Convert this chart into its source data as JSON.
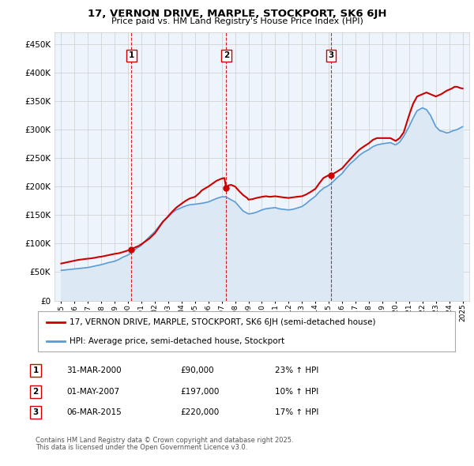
{
  "title": "17, VERNON DRIVE, MARPLE, STOCKPORT, SK6 6JH",
  "subtitle": "Price paid vs. HM Land Registry's House Price Index (HPI)",
  "legend_line1": "17, VERNON DRIVE, MARPLE, STOCKPORT, SK6 6JH (semi-detached house)",
  "legend_line2": "HPI: Average price, semi-detached house, Stockport",
  "footer_line1": "Contains HM Land Registry data © Crown copyright and database right 2025.",
  "footer_line2": "This data is licensed under the Open Government Licence v3.0.",
  "sales": [
    {
      "label": 1,
      "date_str": "31-MAR-2000",
      "date_x": 2000.25,
      "price": 90000,
      "hpi_pct": "23% ↑ HPI"
    },
    {
      "label": 2,
      "date_str": "01-MAY-2007",
      "date_x": 2007.33,
      "price": 197000,
      "hpi_pct": "10% ↑ HPI"
    },
    {
      "label": 3,
      "date_str": "06-MAR-2015",
      "date_x": 2015.17,
      "price": 220000,
      "hpi_pct": "17% ↑ HPI"
    }
  ],
  "price_color": "#cc0000",
  "hpi_color": "#5b9bd5",
  "hpi_fill_color": "#dce9f5",
  "vline_color": "#cc0000",
  "grid_color": "#cccccc",
  "background_color": "#ffffff",
  "chart_bg_color": "#edf4fb",
  "ylim": [
    0,
    470000
  ],
  "xlim": [
    1994.5,
    2025.5
  ],
  "yticks": [
    0,
    50000,
    100000,
    150000,
    200000,
    250000,
    300000,
    350000,
    400000,
    450000
  ],
  "xticks": [
    1995,
    1996,
    1997,
    1998,
    1999,
    2000,
    2001,
    2002,
    2003,
    2004,
    2005,
    2006,
    2007,
    2008,
    2009,
    2010,
    2011,
    2012,
    2013,
    2014,
    2015,
    2016,
    2017,
    2018,
    2019,
    2020,
    2021,
    2022,
    2023,
    2024,
    2025
  ],
  "price_data_x": [
    1995.0,
    1995.1,
    1995.2,
    1995.3,
    1995.4,
    1995.5,
    1995.6,
    1995.7,
    1995.8,
    1995.9,
    1996.0,
    1996.1,
    1996.2,
    1996.3,
    1996.5,
    1996.8,
    1997.0,
    1997.2,
    1997.5,
    1997.8,
    1998.0,
    1998.3,
    1998.6,
    1999.0,
    1999.3,
    1999.6,
    2000.0,
    2000.25,
    2000.5,
    2000.8,
    2001.0,
    2001.3,
    2001.6,
    2002.0,
    2002.3,
    2002.6,
    2003.0,
    2003.3,
    2003.6,
    2004.0,
    2004.3,
    2004.6,
    2005.0,
    2005.3,
    2005.5,
    2005.7,
    2006.0,
    2006.3,
    2006.6,
    2006.9,
    2007.0,
    2007.2,
    2007.33,
    2007.5,
    2007.7,
    2008.0,
    2008.3,
    2008.6,
    2008.9,
    2009.0,
    2009.3,
    2009.6,
    2010.0,
    2010.3,
    2010.6,
    2011.0,
    2011.3,
    2011.6,
    2012.0,
    2012.3,
    2012.6,
    2013.0,
    2013.3,
    2013.6,
    2014.0,
    2014.3,
    2014.6,
    2015.0,
    2015.17,
    2015.3,
    2015.6,
    2016.0,
    2016.3,
    2016.6,
    2017.0,
    2017.3,
    2017.6,
    2018.0,
    2018.3,
    2018.6,
    2019.0,
    2019.3,
    2019.6,
    2020.0,
    2020.3,
    2020.6,
    2021.0,
    2021.3,
    2021.6,
    2022.0,
    2022.3,
    2022.6,
    2023.0,
    2023.2,
    2023.4,
    2023.6,
    2023.8,
    2024.0,
    2024.2,
    2024.4,
    2024.6,
    2024.8,
    2025.0
  ],
  "price_data_y": [
    65000,
    65500,
    66000,
    66500,
    67000,
    67500,
    68000,
    68500,
    69000,
    69500,
    70000,
    70500,
    71000,
    71500,
    72000,
    73000,
    73500,
    74000,
    75000,
    76500,
    77000,
    78500,
    80000,
    82000,
    83000,
    85000,
    88000,
    90000,
    93000,
    96000,
    99000,
    104000,
    109000,
    118000,
    128000,
    138000,
    148000,
    156000,
    163000,
    170000,
    175000,
    179000,
    182000,
    188000,
    193000,
    196000,
    200000,
    205000,
    210000,
    213000,
    214000,
    215000,
    197000,
    202000,
    203000,
    200000,
    192000,
    185000,
    180000,
    177000,
    178000,
    180000,
    182000,
    183000,
    182000,
    183000,
    182000,
    181000,
    180000,
    181000,
    182000,
    183000,
    186000,
    190000,
    196000,
    206000,
    215000,
    220000,
    220000,
    222000,
    226000,
    232000,
    240000,
    248000,
    258000,
    265000,
    270000,
    276000,
    282000,
    285000,
    285000,
    285000,
    285000,
    280000,
    285000,
    295000,
    325000,
    345000,
    358000,
    362000,
    365000,
    362000,
    358000,
    360000,
    362000,
    365000,
    368000,
    370000,
    372000,
    375000,
    375000,
    373000,
    372000
  ],
  "hpi_data_x": [
    1995.0,
    1995.2,
    1995.4,
    1995.6,
    1995.8,
    1996.0,
    1996.2,
    1996.4,
    1996.6,
    1996.8,
    1997.0,
    1997.2,
    1997.5,
    1997.8,
    1998.0,
    1998.3,
    1998.6,
    1999.0,
    1999.3,
    1999.6,
    2000.0,
    2000.3,
    2000.6,
    2001.0,
    2001.3,
    2001.6,
    2002.0,
    2002.3,
    2002.6,
    2003.0,
    2003.3,
    2003.6,
    2004.0,
    2004.3,
    2004.6,
    2005.0,
    2005.3,
    2005.6,
    2006.0,
    2006.3,
    2006.6,
    2007.0,
    2007.3,
    2007.6,
    2008.0,
    2008.3,
    2008.6,
    2009.0,
    2009.3,
    2009.6,
    2010.0,
    2010.3,
    2010.6,
    2011.0,
    2011.3,
    2011.6,
    2012.0,
    2012.3,
    2012.6,
    2013.0,
    2013.3,
    2013.6,
    2014.0,
    2014.3,
    2014.6,
    2015.0,
    2015.3,
    2015.6,
    2016.0,
    2016.3,
    2016.6,
    2017.0,
    2017.3,
    2017.6,
    2018.0,
    2018.3,
    2018.6,
    2019.0,
    2019.3,
    2019.6,
    2020.0,
    2020.3,
    2020.6,
    2021.0,
    2021.3,
    2021.6,
    2022.0,
    2022.3,
    2022.6,
    2023.0,
    2023.3,
    2023.6,
    2023.8,
    2024.0,
    2024.3,
    2024.6,
    2025.0
  ],
  "hpi_data_y": [
    53000,
    53500,
    54000,
    54500,
    55000,
    55500,
    56000,
    56500,
    57000,
    57500,
    58000,
    59000,
    60500,
    62000,
    63000,
    65000,
    67000,
    69000,
    72000,
    76000,
    80000,
    85000,
    91000,
    97000,
    105000,
    112000,
    121000,
    130000,
    139000,
    147000,
    154000,
    159000,
    163000,
    166000,
    168000,
    169000,
    170000,
    171000,
    173000,
    176000,
    179000,
    182000,
    182000,
    178000,
    173000,
    165000,
    157000,
    152000,
    153000,
    155000,
    159000,
    161000,
    162000,
    163000,
    161000,
    160000,
    159000,
    160000,
    162000,
    165000,
    170000,
    176000,
    183000,
    191000,
    197000,
    202000,
    208000,
    215000,
    223000,
    232000,
    240000,
    248000,
    255000,
    260000,
    265000,
    270000,
    273000,
    275000,
    276000,
    277000,
    273000,
    278000,
    288000,
    305000,
    320000,
    333000,
    338000,
    335000,
    325000,
    305000,
    298000,
    296000,
    294000,
    295000,
    298000,
    300000,
    305000
  ]
}
